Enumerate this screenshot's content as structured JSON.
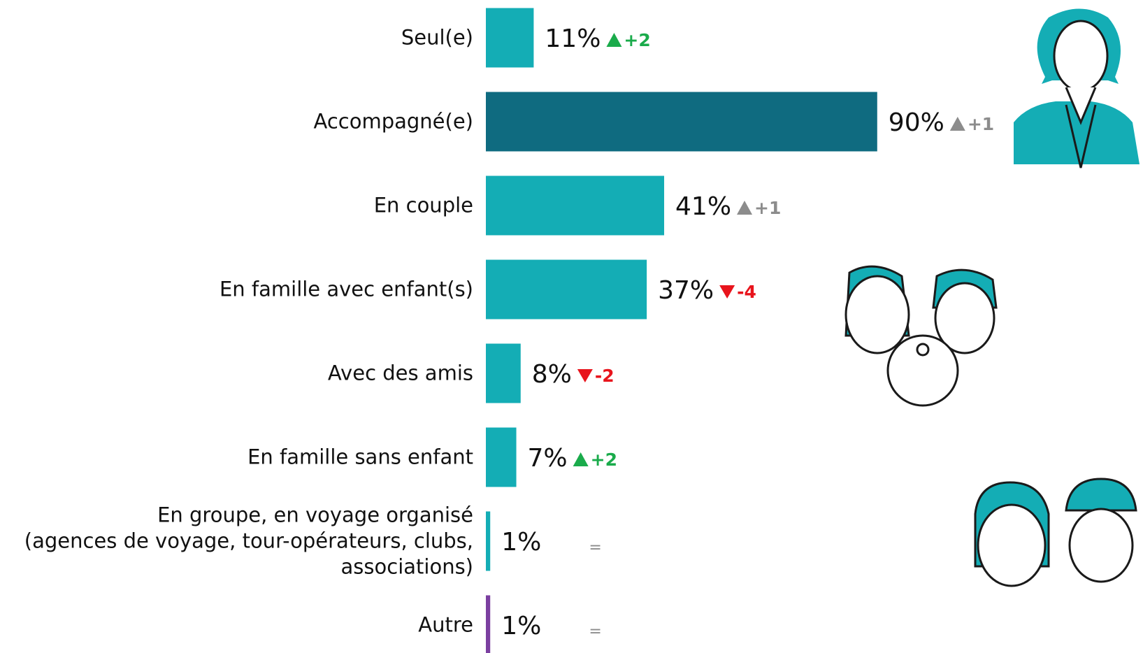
{
  "chart_data": {
    "type": "barh",
    "categories": [
      "Seul(e)",
      "Accompagné(e)",
      "En couple",
      "En famille avec enfant(s)",
      "Avec des amis",
      "En famille sans enfant",
      "En groupe, en voyage organisé\n(agences de voyage, tour-opérateurs, clubs,\nassociations)",
      "Autre"
    ],
    "values": [
      11,
      90,
      41,
      37,
      8,
      7,
      1,
      1
    ],
    "value_labels": [
      "11%",
      "90%",
      "41%",
      "37%",
      "8%",
      "7%",
      "1%",
      "1%"
    ],
    "colors": [
      "#14adb5",
      "#0f6b80",
      "#14adb5",
      "#14adb5",
      "#14adb5",
      "#14adb5",
      "#14adb5",
      "#7b3fa0"
    ],
    "changes": [
      "+2",
      "+1",
      "+1",
      "-4",
      "-2",
      "+2",
      "=",
      "="
    ],
    "change_colors": [
      "#1aab4b",
      "#8c8c8c",
      "#8c8c8c",
      "#e8141c",
      "#e8141c",
      "#1aab4b",
      "#8c8c8c",
      "#8c8c8c"
    ]
  }
}
